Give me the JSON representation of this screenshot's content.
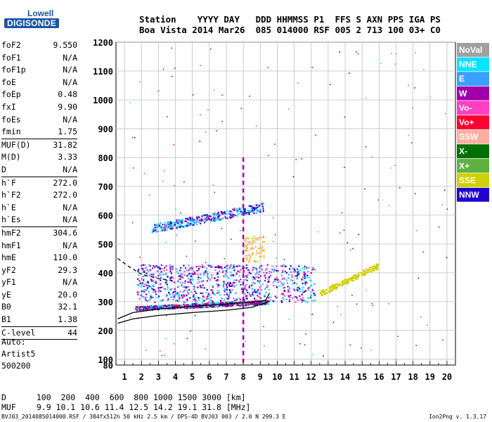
{
  "logo": {
    "line1": "Lowell",
    "line2": "DIGISONDE"
  },
  "header": {
    "line1": "Station    YYYY DAY   DDD HHMMSS P1  FFS S AXN PPS IGA PS",
    "line2": "Boa Vista 2014 Mar26  085 014000 RSF 005 2 713 100 03+ C0"
  },
  "params": [
    {
      "name": "foF2",
      "value": "9.550"
    },
    {
      "name": "foF1",
      "value": "N/A"
    },
    {
      "name": "foF1p",
      "value": "N/A"
    },
    {
      "name": "foE",
      "value": "N/A"
    },
    {
      "name": "foEp",
      "value": "0.48"
    },
    {
      "name": "fxI",
      "value": "9.90"
    },
    {
      "name": "foEs",
      "value": "N/A"
    },
    {
      "name": "fmin",
      "value": "1.75",
      "sep": true
    },
    {
      "name": "MUF(D)",
      "value": "31.82"
    },
    {
      "name": "M(D)",
      "value": "3.33"
    },
    {
      "name": "D",
      "value": "N/A",
      "sep": true
    },
    {
      "name": "h`F",
      "value": "272.0"
    },
    {
      "name": "h`F2",
      "value": "272.0"
    },
    {
      "name": "h`E",
      "value": "N/A"
    },
    {
      "name": "h`Es",
      "value": "N/A",
      "sep": true
    },
    {
      "name": "hmF2",
      "value": "304.6"
    },
    {
      "name": "hmF1",
      "value": "N/A"
    },
    {
      "name": "hmE",
      "value": "110.0"
    },
    {
      "name": "yF2",
      "value": "29.3"
    },
    {
      "name": "yF1",
      "value": "N/A"
    },
    {
      "name": "yE",
      "value": "20.0"
    },
    {
      "name": "B0",
      "value": "32.1"
    },
    {
      "name": "B1",
      "value": "1.38",
      "sep": true
    },
    {
      "name": "C-level",
      "value": "44",
      "sep": true
    }
  ],
  "auto": {
    "line1": "Auto:",
    "line2": "Artist5",
    "line3": "500200"
  },
  "muf_table": {
    "d_label": "D",
    "d_values": "  100  200  400  600  800 1000 1500 3000 [km]",
    "muf_label": "MUF",
    "muf_values": "  9.9 10.1 10.6 11.4 12.5 14.2 19.1 31.8 [MHz]"
  },
  "footer": {
    "left": "BVJ03_2014085014000.RSF / 384fx512h 50 kHz 2.5 km / DPS-4D BVJ03 003 / 2.0 N 299.3 E",
    "right": "Ion2Png v. 1.3.17"
  },
  "legend": [
    {
      "label": "NoVal",
      "color": "#a0a0a0"
    },
    {
      "label": "NNE",
      "color": "#00e5ff"
    },
    {
      "label": "E",
      "color": "#3aa0ff"
    },
    {
      "label": "W",
      "color": "#a000a8"
    },
    {
      "label": "Vo-",
      "color": "#ff40c0"
    },
    {
      "label": "Vo+",
      "color": "#ff0030"
    },
    {
      "label": "SSW",
      "color": "#ffb0a0"
    },
    {
      "label": "X-",
      "color": "#007000"
    },
    {
      "label": "X+",
      "color": "#60b040"
    },
    {
      "label": "SSE",
      "color": "#d0d000"
    },
    {
      "label": "NNW",
      "color": "#2000d0"
    }
  ],
  "chart_data": {
    "type": "scatter",
    "xlabel": "",
    "ylabel": "",
    "xlim": [
      0.5,
      20.5
    ],
    "ylim": [
      80,
      1200
    ],
    "x_ticks": [
      1,
      2,
      3,
      4,
      5,
      6,
      7,
      8,
      9,
      10,
      11,
      12,
      13,
      14,
      15,
      16,
      17,
      18,
      19,
      20
    ],
    "y_ticks": [
      80,
      100,
      200,
      300,
      400,
      500,
      600,
      700,
      800,
      900,
      1000,
      1100,
      1200
    ],
    "clusters": [
      {
        "name": "F2 trace",
        "x": [
          1.6,
          9.5
        ],
        "y": [
          275,
          305
        ],
        "colors": [
          "#ff0030",
          "#a000a8",
          "#2000d0",
          "#00e5ff"
        ],
        "n": 700
      },
      {
        "name": "spread F",
        "x": [
          1.7,
          12.2
        ],
        "y": [
          300,
          430
        ],
        "colors": [
          "#a000a8",
          "#2000d0",
          "#3aa0ff",
          "#00e5ff",
          "#ff40c0"
        ],
        "n": 900
      },
      {
        "name": "multi-hop",
        "x": [
          2.6,
          9.2
        ],
        "y": [
          550,
          650
        ],
        "colors": [
          "#00e5ff",
          "#3aa0ff",
          "#2000d0",
          "#a000a8"
        ],
        "n": 380
      },
      {
        "name": "high spread",
        "x": [
          8.0,
          9.2
        ],
        "y": [
          440,
          530
        ],
        "colors": [
          "#d0d000",
          "#ffb0a0"
        ],
        "n": 90
      },
      {
        "name": "X trace",
        "x": [
          12.5,
          15.9
        ],
        "y": [
          320,
          430
        ],
        "colors": [
          "#d0d000"
        ],
        "n": 200
      }
    ],
    "line_series": [
      {
        "name": "O-profile",
        "points": [
          [
            0.6,
            240
          ],
          [
            1.5,
            262
          ],
          [
            3,
            274
          ],
          [
            5,
            284
          ],
          [
            7,
            292
          ],
          [
            8.5,
            298
          ],
          [
            9.3,
            304
          ],
          [
            9.55,
            330
          ]
        ]
      },
      {
        "name": "X-profile",
        "points": [
          [
            0.6,
            225
          ],
          [
            1.5,
            240
          ],
          [
            3,
            252
          ],
          [
            5,
            262
          ],
          [
            7,
            270
          ],
          [
            8.5,
            280
          ],
          [
            9.5,
            300
          ]
        ]
      },
      {
        "name": "dashed",
        "points": [
          [
            0.6,
            450
          ],
          [
            1.3,
            420
          ],
          [
            2,
            395
          ],
          [
            3,
            380
          ],
          [
            4,
            372
          ]
        ]
      }
    ],
    "vertical_marker_x": 8.0,
    "grid": true
  }
}
